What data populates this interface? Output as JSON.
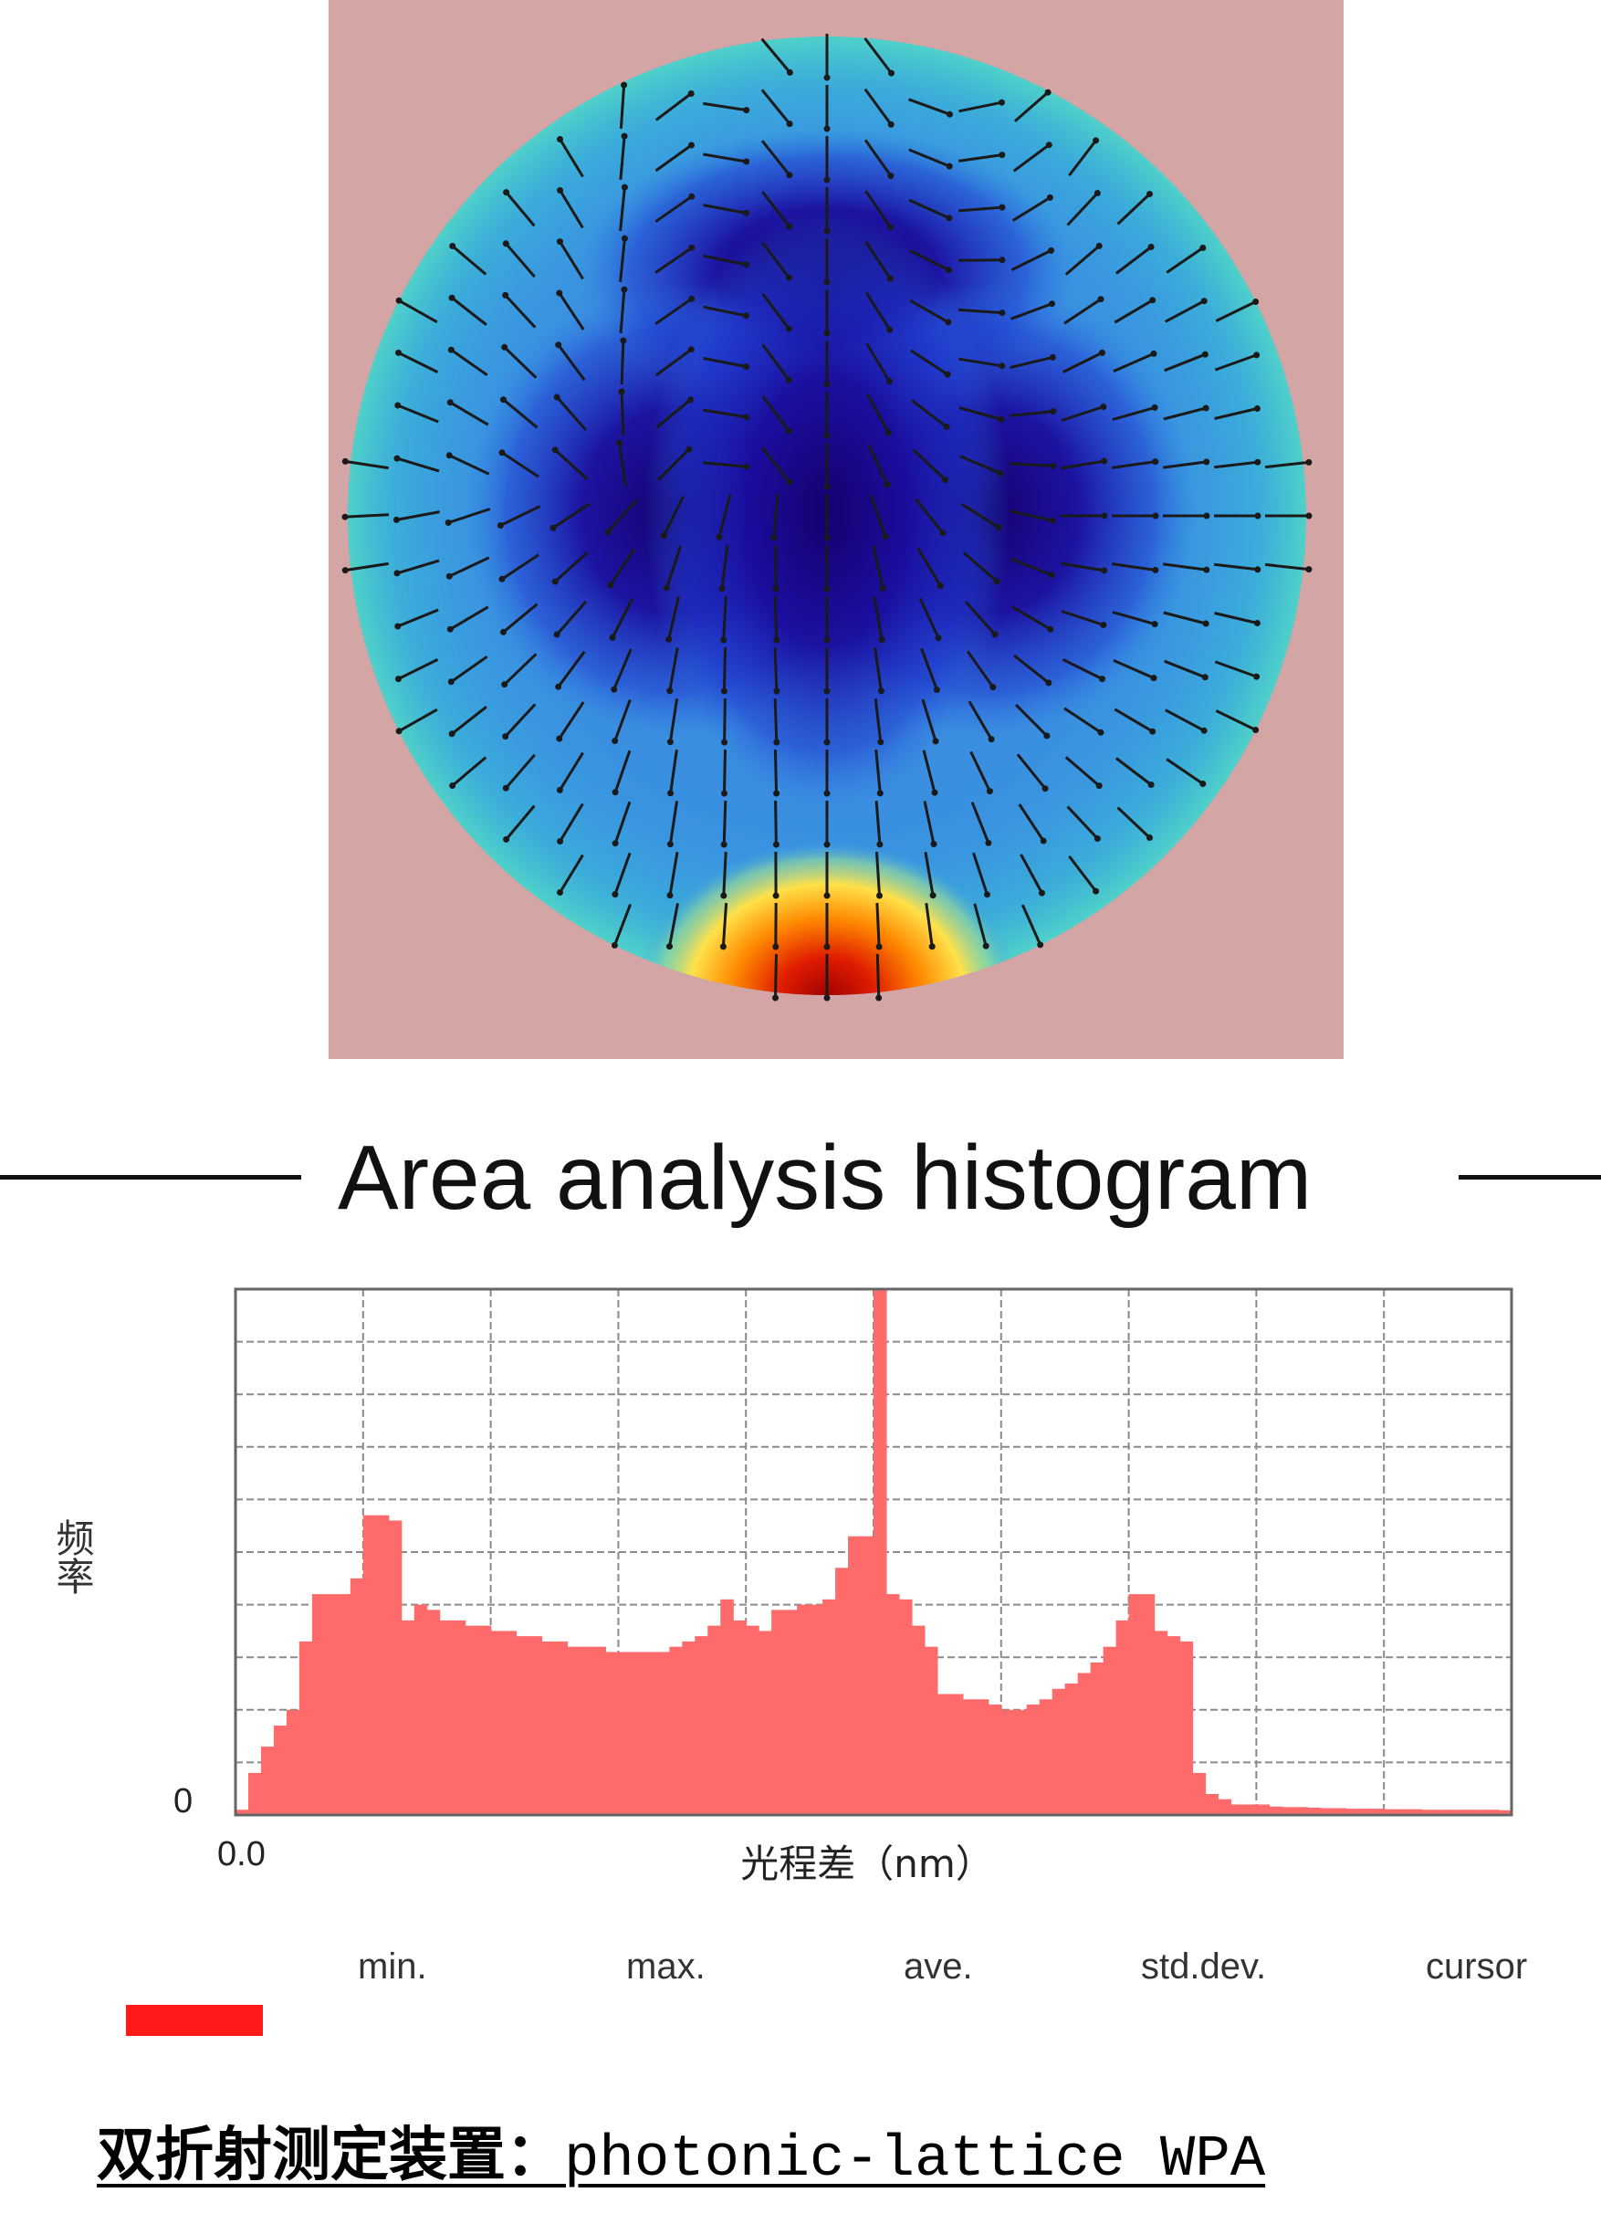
{
  "colors": {
    "map_background": "#d4a5a5",
    "bar_fill": "#ff6b6b",
    "bar_stroke": "#ff4d4d",
    "grid": "#8a8a8a",
    "legend_swatch": "#ff1a1a",
    "arrow": "#1a1a1a"
  },
  "icons": {
    "legend_swatch": "red-series-swatch",
    "title_rules": "horizontal-rule"
  },
  "chart_data": [
    {
      "type": "heatmap",
      "title": "",
      "colormap": "jet",
      "overlay": "retardation-orientation arrows",
      "shape": "circle"
    },
    {
      "type": "bar",
      "title": "Area analysis histogram",
      "xlabel": "光程差（nm）",
      "ylabel": "频率",
      "x_tick_labels": [
        "0.0"
      ],
      "y_tick_labels": [
        "0"
      ],
      "grid": true,
      "x_bins": 100,
      "ylim": [
        0,
        100
      ],
      "values": [
        1,
        8,
        13,
        17,
        20,
        33,
        42,
        42,
        42,
        45,
        57,
        57,
        56,
        37,
        40,
        39,
        37,
        37,
        36,
        36,
        35,
        35,
        34,
        34,
        33,
        33,
        32,
        32,
        32,
        31,
        31,
        31,
        31,
        31,
        32,
        33,
        34,
        36,
        41,
        37,
        36,
        35,
        39,
        39,
        40,
        40,
        41,
        47,
        53,
        53,
        100,
        42,
        41,
        36,
        32,
        23,
        23,
        22,
        22,
        21,
        20,
        20,
        21,
        22,
        24,
        25,
        27,
        29,
        32,
        37,
        42,
        42,
        35,
        34,
        33,
        8,
        4,
        3,
        2,
        2,
        2,
        1.6,
        1.5,
        1.5,
        1.4,
        1.3,
        1.3,
        1.2,
        1.2,
        1.2,
        1.1,
        1.1,
        1.1,
        1,
        1,
        1,
        1,
        1,
        1,
        0.9
      ],
      "stats_labels": [
        "min.",
        "max.",
        "ave.",
        "std.dev.",
        "cursor"
      ]
    }
  ],
  "caption": {
    "cjk": "双折射测定装置：",
    "latin": "photonic-lattice WPA"
  }
}
